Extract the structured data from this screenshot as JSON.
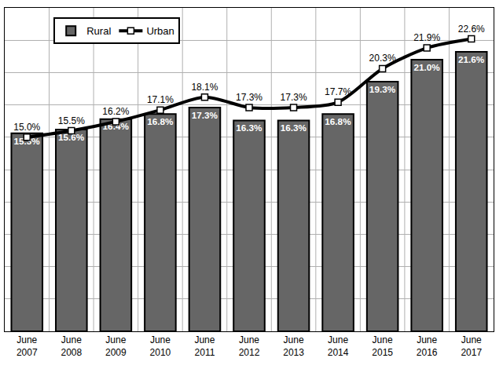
{
  "chart_data": {
    "type": "bar",
    "categories": [
      "June 2007",
      "June 2008",
      "June 2009",
      "June 2010",
      "June 2011",
      "June 2012",
      "June 2013",
      "June 2014",
      "June 2015",
      "June 2016",
      "June 2017"
    ],
    "series": [
      {
        "name": "Rural",
        "type": "bar",
        "color": "#666666",
        "values": [
          15.3,
          15.6,
          16.4,
          16.8,
          17.3,
          16.3,
          16.3,
          16.8,
          19.3,
          21.0,
          21.6
        ],
        "value_labels": [
          "15.3%",
          "15.6%",
          "16.4%",
          "16.8%",
          "17.3%",
          "16.3%",
          "16.3%",
          "16.8%",
          "19.3%",
          "21.0%",
          "21.6%"
        ]
      },
      {
        "name": "Urban",
        "type": "line",
        "color": "#000000",
        "marker": "square",
        "values": [
          15.0,
          15.5,
          16.2,
          17.1,
          18.1,
          17.3,
          17.3,
          17.7,
          20.3,
          21.9,
          22.6
        ],
        "value_labels": [
          "15.0%",
          "15.5%",
          "16.2%",
          "17.1%",
          "18.1%",
          "17.3%",
          "17.3%",
          "17.7%",
          "20.3%",
          "21.9%",
          "22.6%"
        ]
      }
    ],
    "ylim": [
      0,
      25
    ],
    "yticks": [
      0,
      2.5,
      5,
      7.5,
      10,
      12.5,
      15,
      17.5,
      20,
      22.5,
      25
    ],
    "grid": true,
    "legend": "top left",
    "data_labels": true,
    "tick_labels": "x"
  }
}
